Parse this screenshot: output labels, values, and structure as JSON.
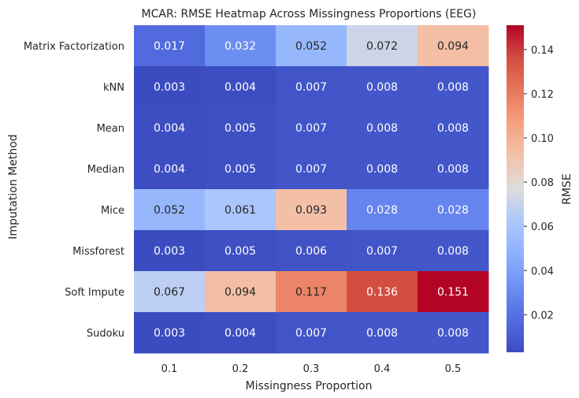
{
  "chart_data": {
    "type": "heatmap",
    "title": "MCAR: RMSE Heatmap Across Missingness Proportions (EEG)",
    "xlabel": "Missingness Proportion",
    "ylabel": "Imputation Method",
    "x_categories": [
      "0.1",
      "0.2",
      "0.3",
      "0.4",
      "0.5"
    ],
    "y_categories": [
      "Matrix Factorization",
      "kNN",
      "Mean",
      "Median",
      "Mice",
      "Missforest",
      "Soft Impute",
      "Sudoku"
    ],
    "values": [
      [
        0.017,
        0.032,
        0.052,
        0.072,
        0.094
      ],
      [
        0.003,
        0.004,
        0.007,
        0.008,
        0.008
      ],
      [
        0.004,
        0.005,
        0.007,
        0.008,
        0.008
      ],
      [
        0.004,
        0.005,
        0.007,
        0.008,
        0.008
      ],
      [
        0.052,
        0.061,
        0.093,
        0.028,
        0.028
      ],
      [
        0.003,
        0.005,
        0.006,
        0.007,
        0.008
      ],
      [
        0.067,
        0.094,
        0.117,
        0.136,
        0.151
      ],
      [
        0.003,
        0.004,
        0.007,
        0.008,
        0.008
      ]
    ],
    "colorbar": {
      "label": "RMSE",
      "range": [
        0.003,
        0.151
      ],
      "ticks": [
        "0.02",
        "0.04",
        "0.06",
        "0.08",
        "0.10",
        "0.12",
        "0.14"
      ],
      "colormap": "coolwarm"
    }
  }
}
